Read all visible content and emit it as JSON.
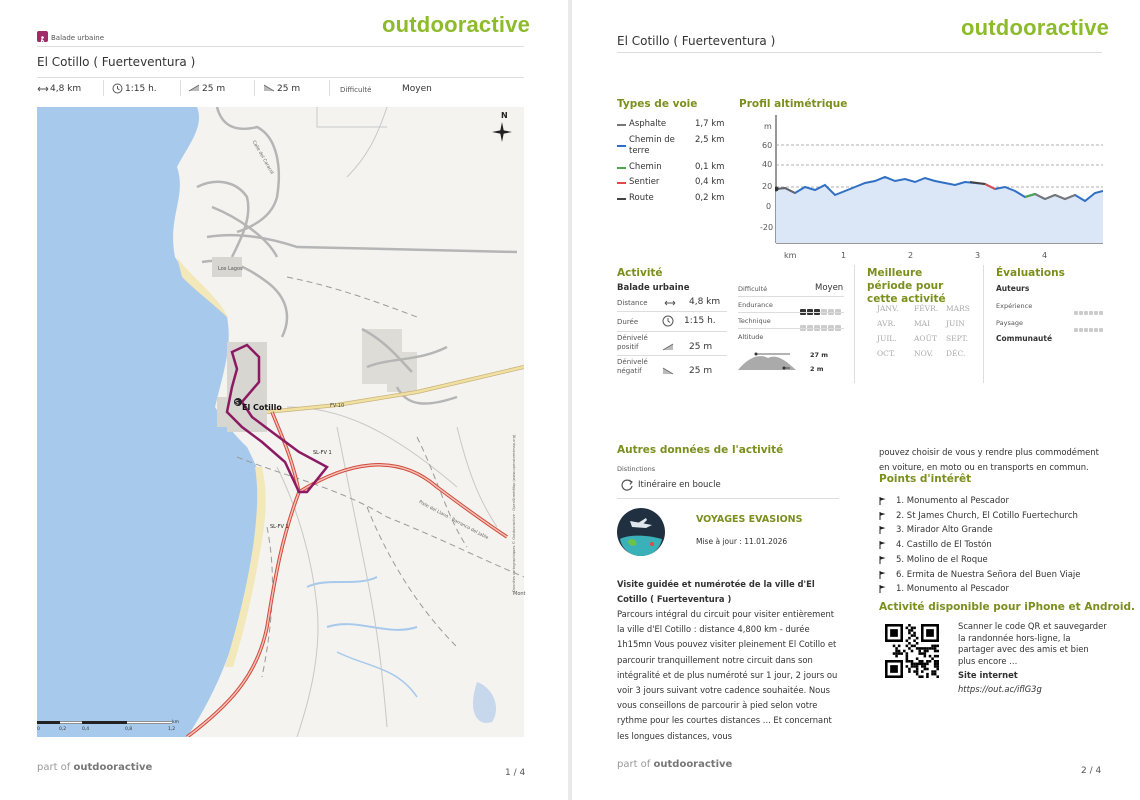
{
  "brand": "outdooractive",
  "footer": {
    "part_of": "part of",
    "brand": "outdooractive"
  },
  "page1": {
    "page_number": "1 / 4",
    "category": "Balade urbaine",
    "title": "El Cotillo ( Fuerteventura )",
    "stats": {
      "distance": "4,8 km",
      "duration": "1:15 h.",
      "ascent": "25 m",
      "descent": "25 m",
      "difficulty_label": "Difficulté",
      "difficulty": "Moyen"
    },
    "map": {
      "north": "N",
      "labels": {
        "town": "El Cotillo",
        "los_lagos": "Los Lagos",
        "road_fv10": "FV-10",
        "road_slfv1_a": "SL-FV 1",
        "road_slfv1_b": "SL-FV 1",
        "calle": "Calle del Caracol",
        "pliego": "Piste del Llano - Barranco del Jable",
        "copyright": "Données cartographiques © Outdooractive · OpenStreetMap (www.openstreetmap.org)",
        "mont": "Mont"
      },
      "scale": {
        "ticks": [
          "0",
          "0,2",
          "0,4",
          "0,8",
          "1,2"
        ],
        "unit": "km"
      }
    }
  },
  "page2": {
    "page_number": "2 / 4",
    "title": "El Cotillo ( Fuerteventura )",
    "way_types": {
      "heading": "Types de voie",
      "items": [
        {
          "name": "Asphalte",
          "value": "1,7 km",
          "color": "#777777"
        },
        {
          "name": "Chemin de terre",
          "value": "2,5 km",
          "color": "#2f6fc4"
        },
        {
          "name": "Chemin",
          "value": "0,1 km",
          "color": "#4aa84a"
        },
        {
          "name": "Sentier",
          "value": "0,4 km",
          "color": "#e04a4a"
        },
        {
          "name": "Route",
          "value": "0,2 km",
          "color": "#444444"
        }
      ]
    },
    "profile": {
      "heading": "Profil altimétrique",
      "y_unit": "m",
      "y_ticks": [
        "60",
        "40",
        "20",
        "0",
        "-20"
      ],
      "x_unit": "km",
      "x_ticks": [
        "1",
        "2",
        "3",
        "4"
      ]
    },
    "activity": {
      "heading": "Activité",
      "type": "Balade urbaine",
      "distance_label": "Distance",
      "distance": "4,8 km",
      "duration_label": "Durée",
      "duration": "1:15 h.",
      "ascent_label": "Dénivelé positif",
      "ascent": "25 m",
      "descent_label": "Dénivelé négatif",
      "descent": "25 m",
      "difficulty_label": "Difficulté",
      "difficulty": "Moyen",
      "endurance_label": "Endurance",
      "endurance_level": 3,
      "technique_label": "Technique",
      "technique_level": 0,
      "altitude_label": "Altitude",
      "alt_max": "27 m",
      "alt_min": "2 m"
    },
    "season": {
      "heading": "Meilleure période pour cette activité",
      "months": [
        "JANV.",
        "FÉVR.",
        "MARS",
        "AVR.",
        "MAI",
        "JUIN",
        "JUIL.",
        "AOÛT",
        "SEPT.",
        "OCT.",
        "NOV.",
        "DÉC."
      ]
    },
    "ratings": {
      "heading": "Évaluations",
      "authors": "Auteurs",
      "experience": "Expérience",
      "landscape": "Paysage",
      "community": "Communauté"
    },
    "other": {
      "heading": "Autres données de l'activité",
      "distinctions_label": "Distinctions",
      "loop": "Itinéraire en boucle",
      "author": "VOYAGES EVASIONS",
      "updated": "Mise à jour : 11.01.2026"
    },
    "description": {
      "title": "Visite guidée et numérotée de la ville d'El Cotillo ( Fuerteventura )",
      "body": "Parcours intégral du circuit pour visiter entièrement la ville d'El Cotillo : distance 4,800 km - durée 1h15mn Vous pouvez visiter pleinement El Cotillo et parcourir tranquillement notre circuit dans son intégralité et de plus numéroté sur 1 jour, 2 jours ou voir 3 jours suivant votre cadence souhaitée. Nous vous conseillons de parcourir à pied selon votre rythme pour les courtes distances ... Et concernant les longues distances, vous",
      "continued": "pouvez choisir de vous y rendre plus commodément en voiture, en moto ou en transports en commun."
    },
    "poi": {
      "heading": "Points d'intérêt",
      "items": [
        "1. Monumento al Pescador",
        "2. St James Church, El Cotillo Fuertechurch",
        "3. Mirador Alto Grande",
        "4. Castillo de El Tostón",
        "5. Molino de el Roque",
        "6. Ermita de Nuestra Señora del Buen Viaje",
        "1. Monumento al Pescador"
      ]
    },
    "app": {
      "heading": "Activité disponible pour iPhone et Android.",
      "text": "Scanner le code QR et sauvegarder la randonnée hors-ligne, la partager avec des amis et bien plus encore ...",
      "site_label": "Site internet",
      "url": "https://out.ac/iflG3g"
    }
  }
}
